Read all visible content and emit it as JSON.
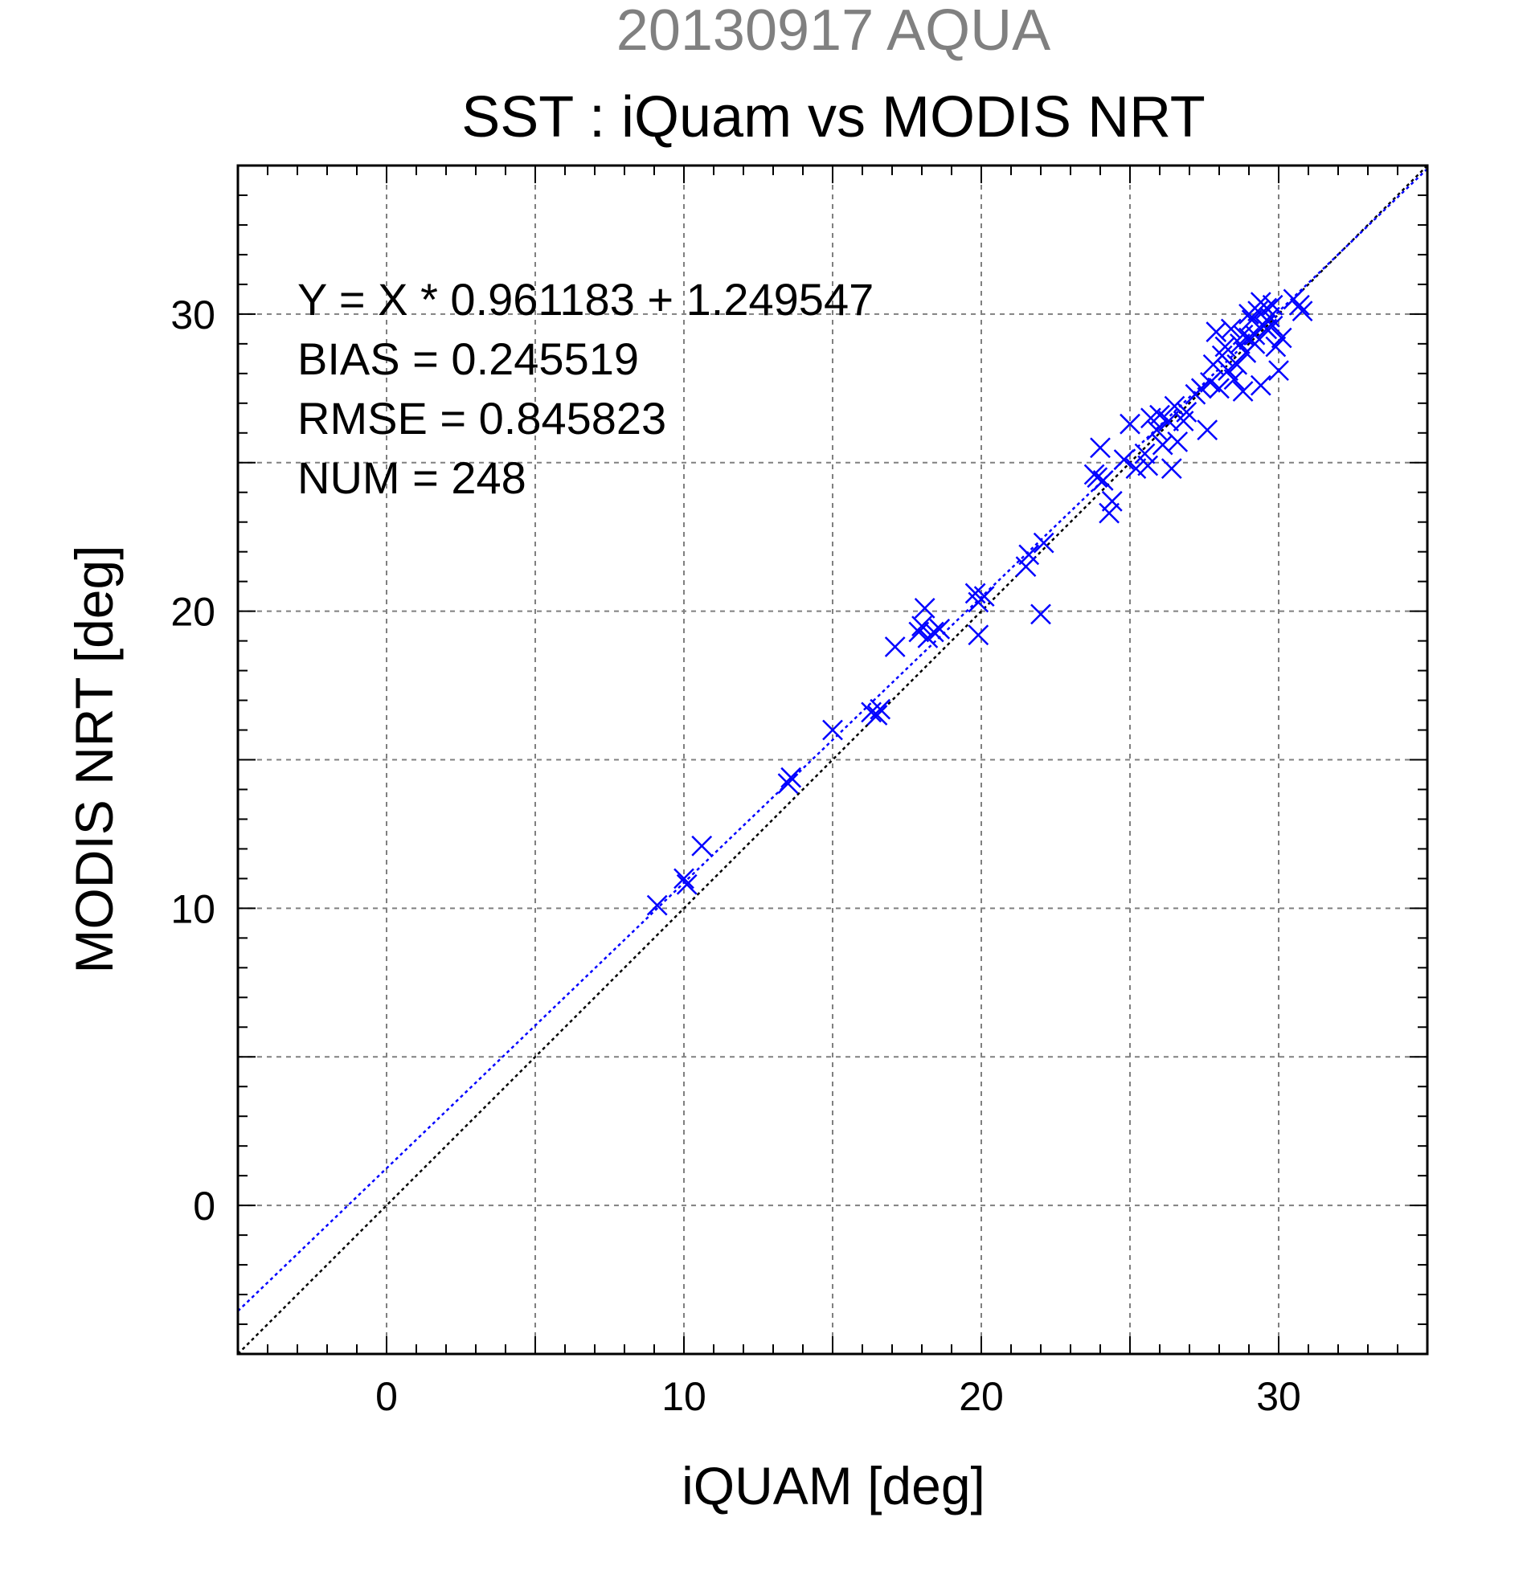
{
  "chart_data": {
    "type": "scatter",
    "supertitle": "20130917 AQUA",
    "title": "SST : iQuam vs MODIS NRT",
    "xlabel": "iQUAM [deg]",
    "ylabel": "MODIS NRT [deg]",
    "xlim": [
      -5,
      35
    ],
    "ylim": [
      -5,
      35
    ],
    "xticks": [
      "0",
      "10",
      "20",
      "30"
    ],
    "yticks": [
      "0",
      "10",
      "20",
      "30"
    ],
    "grid": true,
    "stats": {
      "fit": "Y = X * 0.961183 + 1.249547",
      "bias": "BIAS = 0.245519",
      "rmse": "RMSE = 0.845823",
      "num": "NUM = 248"
    },
    "fit_line": {
      "slope": 0.961183,
      "intercept": 1.249547
    },
    "colors": {
      "points": "#0000ff",
      "fit_line": "#0000ff",
      "identity_line": "#000000",
      "grid": "#808080",
      "supertitle": "#808080"
    },
    "points": [
      [
        9.1,
        10.1
      ],
      [
        10.0,
        11.0
      ],
      [
        10.1,
        10.8
      ],
      [
        10.6,
        12.1
      ],
      [
        13.5,
        14.2
      ],
      [
        13.6,
        14.4
      ],
      [
        15.0,
        16.0
      ],
      [
        16.3,
        16.6
      ],
      [
        16.5,
        16.5
      ],
      [
        16.6,
        16.7
      ],
      [
        17.1,
        18.8
      ],
      [
        17.9,
        19.3
      ],
      [
        18.0,
        19.5
      ],
      [
        18.1,
        20.1
      ],
      [
        18.2,
        19.1
      ],
      [
        18.4,
        19.3
      ],
      [
        18.6,
        19.4
      ],
      [
        19.8,
        20.6
      ],
      [
        19.9,
        19.2
      ],
      [
        19.9,
        20.3
      ],
      [
        20.1,
        20.5
      ],
      [
        21.5,
        21.5
      ],
      [
        21.6,
        21.9
      ],
      [
        22.0,
        19.9
      ],
      [
        22.1,
        22.3
      ],
      [
        23.8,
        24.6
      ],
      [
        23.9,
        24.5
      ],
      [
        24.0,
        25.5
      ],
      [
        24.1,
        24.4
      ],
      [
        24.3,
        23.3
      ],
      [
        24.4,
        23.7
      ],
      [
        24.8,
        25.1
      ],
      [
        25.0,
        26.3
      ],
      [
        25.2,
        24.8
      ],
      [
        25.5,
        25.3
      ],
      [
        25.6,
        24.9
      ],
      [
        25.7,
        26.5
      ],
      [
        25.9,
        26.1
      ],
      [
        26.0,
        26.6
      ],
      [
        26.1,
        25.6
      ],
      [
        26.3,
        26.4
      ],
      [
        26.4,
        24.8
      ],
      [
        26.5,
        26.9
      ],
      [
        26.6,
        25.7
      ],
      [
        26.8,
        26.4
      ],
      [
        26.9,
        26.7
      ],
      [
        27.2,
        27.3
      ],
      [
        27.4,
        27.5
      ],
      [
        27.6,
        26.1
      ],
      [
        27.7,
        27.7
      ],
      [
        27.8,
        28.3
      ],
      [
        27.9,
        29.4
      ],
      [
        28.0,
        27.5
      ],
      [
        28.1,
        28.6
      ],
      [
        28.2,
        28.9
      ],
      [
        28.3,
        28.1
      ],
      [
        28.4,
        29.5
      ],
      [
        28.5,
        27.8
      ],
      [
        28.6,
        28.3
      ],
      [
        28.7,
        29.0
      ],
      [
        28.8,
        27.4
      ],
      [
        28.9,
        28.7
      ],
      [
        29.0,
        29.2
      ],
      [
        29.1,
        29.8
      ],
      [
        29.2,
        29.3
      ],
      [
        29.3,
        30.1
      ],
      [
        29.4,
        27.6
      ],
      [
        29.5,
        29.6
      ],
      [
        29.6,
        30.2
      ],
      [
        29.7,
        29.9
      ],
      [
        29.8,
        30.3
      ],
      [
        29.9,
        28.9
      ],
      [
        30.0,
        28.1
      ],
      [
        30.1,
        29.2
      ],
      [
        30.5,
        30.5
      ],
      [
        30.7,
        30.3
      ],
      [
        30.8,
        30.1
      ],
      [
        29.0,
        30.0
      ],
      [
        29.2,
        29.0
      ],
      [
        29.4,
        30.4
      ],
      [
        29.6,
        29.5
      ],
      [
        28.8,
        29.3
      ],
      [
        29.8,
        29.6
      ]
    ]
  }
}
